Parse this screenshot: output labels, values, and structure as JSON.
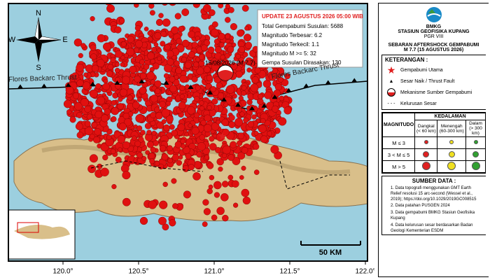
{
  "map": {
    "compass": {
      "n": "N",
      "s": "S",
      "w": "W",
      "e": "E"
    },
    "info_box": {
      "title": "UPDATE 23 AGUSTUS 2026 05:00 WIB",
      "lines": [
        "Total Gempabumi Susulan: 5688",
        "Magnitudo Terbesar: 6.2",
        "Magnitudo Terkecil: 1.1",
        "Magnitudo M >= 5: 32",
        "Gempa Susulan Dirasakan: 130"
      ]
    },
    "mainshock_label": "15/08/2026 (M 7.7)",
    "fault_labels": [
      "Flores Backarc Thrust",
      "Flores Backarc Thrust"
    ],
    "longitude_labels": [
      "120.0°",
      "120.5°",
      "121.0°",
      "121.5°",
      "122.0°"
    ],
    "scale_label": "50 KM"
  },
  "legend": {
    "logo": "BMKG",
    "station": "STASIUN GEOFISIKA KUPANG",
    "region": "PGR VIII",
    "title": "SEBARAN AFTERSHOCK GEMPABUMI",
    "subtitle": "M 7.7 (15 AGUSTUS 2026)",
    "keterangan": "KETERANGAN :",
    "items": [
      "Gempabumi Utama",
      "Sesar Naik / Thrust Fault",
      "Mekanisme Sumber Gempabumi",
      "Kelurusan Sesar"
    ],
    "table": {
      "magnitude_header": "MAGNITUDO",
      "depth_header": "KEDALAMAN",
      "depths": [
        "Dangkal (< 60 km)",
        "Menengah (60-300 km)",
        "Dalam (> 300 km)"
      ],
      "magnitudes": [
        "M ≤ 3",
        "3 < M ≤ 5",
        "M > 5"
      ]
    },
    "sources_title": "SUMBER DATA :",
    "sources": [
      "1. Data topografi menggunakan GMT Earth Relief resolusi 15 arc-second (Wessel et al., 2019); https://doi.org/10.1029/2019GC008515",
      "2. Data patahan PUSGEN 2024",
      "3. Data gempabumi BMKG Stasiun Geofisika Kupang",
      "4. Data kelurusan sesar berdasarkan Badan Geologi Kementerian ESDM"
    ]
  }
}
